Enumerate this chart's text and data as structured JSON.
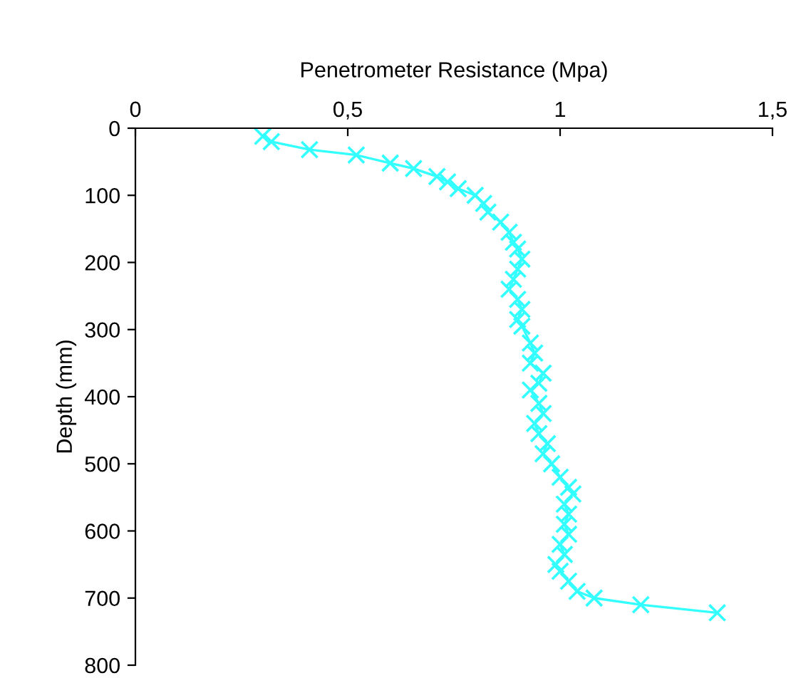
{
  "chart_data": {
    "type": "line",
    "xlabel": "Penetrometer Resistance (Mpa)",
    "ylabel": "Depth (mm)",
    "xlim": [
      0,
      1.5
    ],
    "xticks": [
      0,
      {
        "value": 0.5,
        "label": "0,5"
      },
      1,
      {
        "value": 1.5,
        "label": "1,5"
      }
    ],
    "ylim": [
      800,
      0
    ],
    "yticks": [
      0,
      100,
      200,
      300,
      400,
      500,
      600,
      700,
      800
    ],
    "grid": false,
    "legend": false,
    "marker": "cross",
    "line_style": "solid",
    "series": [
      {
        "color": "#33ffff",
        "x": [
          0.3,
          0.32,
          0.41,
          0.52,
          0.6,
          0.655,
          0.71,
          0.735,
          0.76,
          0.8,
          0.82,
          0.83,
          0.86,
          0.88,
          0.89,
          0.9,
          0.91,
          0.9,
          0.89,
          0.88,
          0.9,
          0.91,
          0.9,
          0.91,
          0.93,
          0.94,
          0.93,
          0.96,
          0.95,
          0.93,
          0.95,
          0.96,
          0.94,
          0.95,
          0.97,
          0.96,
          0.98,
          1.0,
          1.02,
          1.03,
          1.01,
          1.02,
          1.01,
          1.02,
          1.0,
          1.01,
          0.99,
          1.0,
          1.02,
          1.04,
          1.08,
          1.19,
          1.37
        ],
        "values": [
          12,
          20,
          32,
          40,
          52,
          60,
          72,
          80,
          90,
          100,
          112,
          125,
          140,
          155,
          170,
          180,
          195,
          210,
          225,
          240,
          255,
          270,
          285,
          295,
          320,
          335,
          350,
          365,
          380,
          390,
          410,
          425,
          440,
          455,
          470,
          485,
          500,
          520,
          535,
          545,
          560,
          575,
          590,
          605,
          620,
          635,
          650,
          660,
          675,
          690,
          700,
          710,
          722
        ]
      }
    ]
  }
}
